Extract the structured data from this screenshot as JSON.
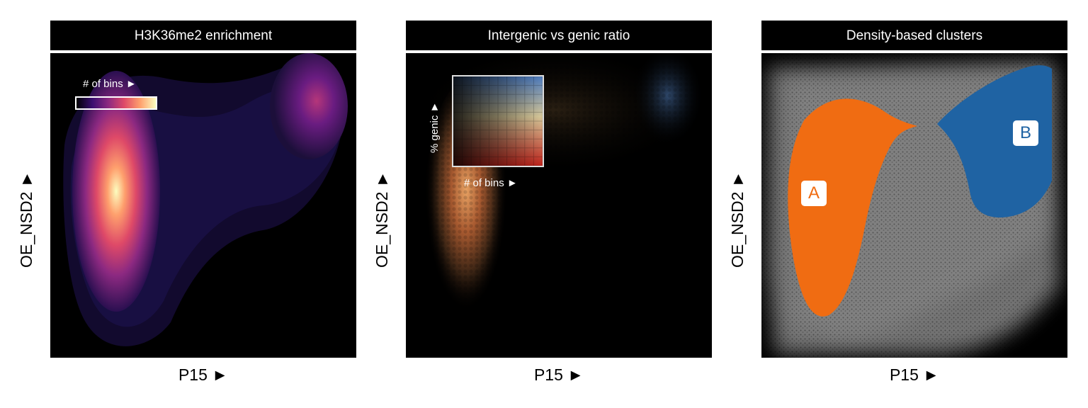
{
  "panels": [
    {
      "title": "H3K36me2 enrichment",
      "xlabel": "P15 ►",
      "ylabel": "OE_NSD2 ►",
      "legend_label": "# of bins ►"
    },
    {
      "title": "Intergenic vs genic ratio",
      "xlabel": "P15 ►",
      "ylabel": "OE_NSD2 ►",
      "legend_x_label": "# of bins ►",
      "legend_y_label": "% genic ►"
    },
    {
      "title": "Density-based clusters",
      "xlabel": "P15 ►",
      "ylabel": "OE_NSD2 ►",
      "clusters": [
        {
          "label": "A",
          "color": "#f06c12"
        },
        {
          "label": "B",
          "color": "#1f63a3"
        }
      ]
    }
  ],
  "chart_data": [
    {
      "type": "heatmap",
      "title": "H3K36me2 enrichment",
      "xlabel": "P15",
      "ylabel": "OE_NSD2",
      "colormap": "magma",
      "legend": "# of bins",
      "legend_placement": "top-left"
    },
    {
      "type": "heatmap",
      "title": "Intergenic vs genic ratio",
      "xlabel": "P15",
      "ylabel": "OE_NSD2",
      "colormap": "bivariate",
      "legend_x": "# of bins",
      "legend_y": "% genic",
      "legend_placement": "top-left"
    },
    {
      "type": "scatter",
      "title": "Density-based clusters",
      "xlabel": "P15",
      "ylabel": "OE_NSD2",
      "series": [
        {
          "name": "A",
          "color": "#f06c12"
        },
        {
          "name": "B",
          "color": "#1f63a3"
        }
      ]
    }
  ]
}
